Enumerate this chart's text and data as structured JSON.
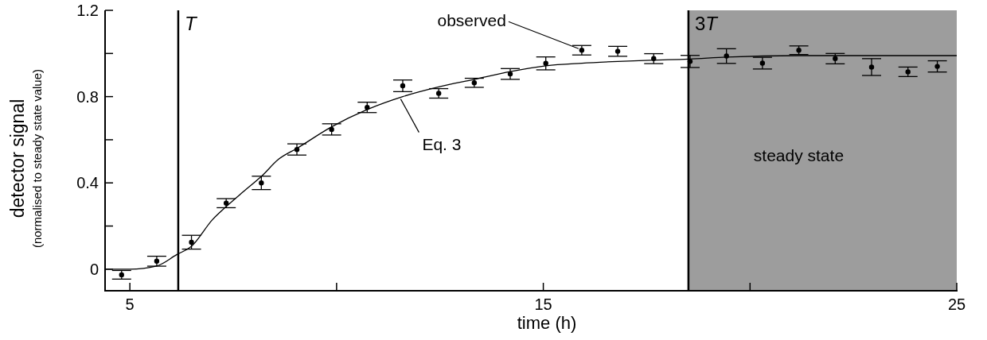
{
  "chart_data": {
    "type": "scatter",
    "xlabel": "time (h)",
    "ylabel": "detector signal\n(normalised to steady state value)",
    "xlim": [
      4.4,
      25
    ],
    "ylim": [
      -0.1,
      1.2
    ],
    "xticks": [
      5,
      {
        "value": 10,
        "label": null
      },
      15,
      {
        "value": 20,
        "label": null
      },
      25
    ],
    "yticks": [
      0,
      {
        "value": 0.2,
        "label": null
      },
      0.4,
      {
        "value": 0.6,
        "label": null
      },
      0.8,
      {
        "value": 1.0,
        "label": null
      },
      1.2
    ],
    "grid": false,
    "marker": "circle",
    "series": [
      {
        "color": "#000000",
        "x": [
          4.8,
          5.65,
          6.49,
          7.33,
          8.18,
          9.04,
          9.88,
          10.74,
          11.6,
          12.47,
          13.33,
          14.2,
          15.06,
          15.93,
          16.8,
          17.67,
          18.55,
          19.43,
          20.3,
          21.18,
          22.06,
          22.94,
          23.82,
          24.53
        ],
        "values": [
          -0.026,
          0.037,
          0.125,
          0.306,
          0.4,
          0.555,
          0.648,
          0.75,
          0.85,
          0.815,
          0.864,
          0.905,
          0.954,
          1.015,
          1.01,
          0.976,
          0.963,
          0.988,
          0.955,
          1.015,
          0.976,
          0.937,
          0.915,
          0.94
        ],
        "errors": [
          0.02,
          0.023,
          0.032,
          0.021,
          0.031,
          0.026,
          0.026,
          0.024,
          0.027,
          0.022,
          0.021,
          0.025,
          0.03,
          0.022,
          0.023,
          0.023,
          0.028,
          0.034,
          0.027,
          0.02,
          0.024,
          0.039,
          0.022,
          0.026
        ]
      },
      {
        "type": "line",
        "color": "#000000",
        "line_style": "solid",
        "marker": "none",
        "x": [
          4.4,
          5,
          5.65,
          6.13,
          6.49,
          7,
          7.33,
          7.75,
          8.18,
          8.6,
          9.04,
          9.88,
          10.74,
          11.6,
          12.47,
          13.33,
          14.2,
          15.06,
          15.93,
          16.8,
          17.67,
          18.51,
          19.43,
          21.18,
          25
        ],
        "values": [
          0,
          0,
          0.015,
          0.067,
          0.106,
          0.23,
          0.29,
          0.36,
          0.43,
          0.51,
          0.56,
          0.66,
          0.74,
          0.8,
          0.845,
          0.88,
          0.916,
          0.943,
          0.955,
          0.963,
          0.969,
          0.974,
          0.983,
          0.99,
          0.99
        ]
      }
    ],
    "ref_lines": [
      {
        "axis": "x",
        "value": 6.17,
        "label": "T",
        "color": "#000000"
      },
      {
        "axis": "x",
        "value": 18.51,
        "label": "3T",
        "color": "#000000"
      }
    ],
    "bands": [
      {
        "axis": "x",
        "from": 18.51,
        "to": 25,
        "label": "steady state",
        "color": "#9d9d9d"
      }
    ],
    "annotations": [
      {
        "text": "observed",
        "x": 15.93,
        "y": 1.015
      },
      {
        "text": "Eq. 3",
        "x": 11.55,
        "y": 0.8
      }
    ]
  }
}
